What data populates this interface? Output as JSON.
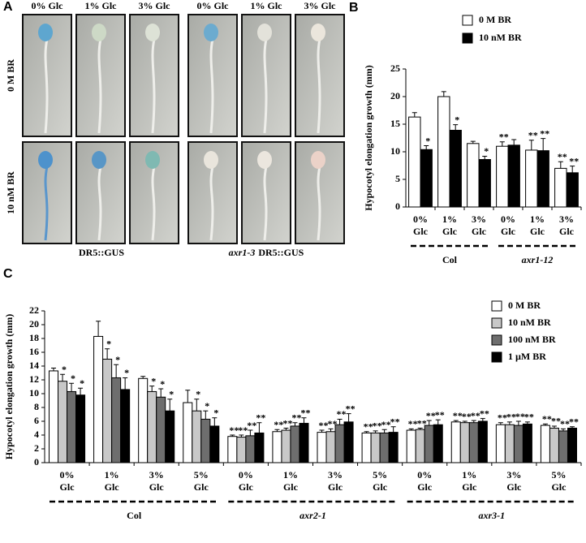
{
  "panel_a": {
    "label": "A",
    "columns": [
      "0% Glc",
      "1% Glc",
      "3% Glc",
      "0% Glc",
      "1% Glc",
      "3% Glc"
    ],
    "rows": [
      "0 M BR",
      "10 nM BR"
    ],
    "captions": [
      [
        "DR5::GUS"
      ],
      [
        "axr1-3",
        "DR5::GUS"
      ]
    ]
  },
  "chart_data": [
    {
      "type": "bar",
      "label": "B",
      "y_label": "Hypocotyl elongation growth (mm)",
      "categories": [
        "0% Glc",
        "1% Glc",
        "3% Glc",
        "0% Glc",
        "1% Glc",
        "3% Glc"
      ],
      "groups": [
        "Col",
        "axr1-12"
      ],
      "ylim": [
        0,
        25
      ],
      "yticks": [
        0,
        5,
        10,
        15,
        20,
        25
      ],
      "series": [
        {
          "name": "0 M BR",
          "color": "#ffffff",
          "values": [
            16.3,
            20.0,
            11.5,
            11.0,
            10.3,
            7.0
          ],
          "errors": [
            0.8,
            0.9,
            0.4,
            0.8,
            1.8,
            1.2
          ],
          "annotations": [
            null,
            null,
            null,
            "**",
            "**",
            "**"
          ]
        },
        {
          "name": "10 nM BR",
          "color": "#000000",
          "values": [
            10.4,
            13.9,
            8.6,
            11.2,
            10.2,
            6.2
          ],
          "errors": [
            0.7,
            1.0,
            0.6,
            1.0,
            2.2,
            1.2
          ],
          "annotations": [
            "*",
            "*",
            "*",
            null,
            "**",
            "**"
          ]
        }
      ]
    },
    {
      "type": "bar",
      "label": "C",
      "y_label": "Hypocotyl elongation growth (mm)",
      "categories": [
        "0% Glc",
        "1% Glc",
        "3% Glc",
        "5% Glc",
        "0% Glc",
        "1% Glc",
        "3% Glc",
        "5% Glc",
        "0% Glc",
        "1% Glc",
        "3% Glc",
        "5% Glc"
      ],
      "groups": [
        "Col",
        "axr2-1",
        "axr3-1"
      ],
      "ylim": [
        0,
        22
      ],
      "yticks": [
        0,
        2,
        4,
        6,
        8,
        10,
        12,
        14,
        16,
        18,
        20,
        22
      ],
      "series": [
        {
          "name": "0 M BR",
          "color": "#ffffff",
          "values": [
            13.3,
            18.3,
            12.2,
            8.7,
            3.8,
            4.5,
            4.4,
            4.3,
            4.7,
            5.9,
            5.5,
            5.4
          ],
          "errors": [
            0.4,
            2.2,
            0.3,
            1.8,
            0.2,
            0.3,
            0.3,
            0.2,
            0.2,
            0.2,
            0.3,
            0.2
          ],
          "annotations": [
            null,
            null,
            null,
            null,
            "**",
            "**",
            "**",
            "**",
            "**",
            "**",
            "**",
            "**"
          ]
        },
        {
          "name": "10 nM BR",
          "color": "#c8c8c8",
          "values": [
            11.8,
            15.0,
            10.3,
            7.5,
            3.7,
            4.7,
            4.5,
            4.3,
            4.8,
            5.8,
            5.5,
            5.0
          ],
          "errors": [
            1.0,
            1.5,
            0.8,
            1.7,
            0.3,
            0.3,
            0.4,
            0.3,
            0.2,
            0.2,
            0.4,
            0.3
          ],
          "annotations": [
            "*",
            "*",
            "*",
            "*",
            "**",
            "**",
            "**",
            "**",
            "**",
            "**",
            "**",
            "**"
          ]
        },
        {
          "name": "100 nM BR",
          "color": "#6e6e6e",
          "values": [
            10.3,
            12.3,
            9.5,
            6.3,
            3.9,
            5.3,
            5.5,
            4.3,
            5.4,
            5.8,
            5.4,
            4.6
          ],
          "errors": [
            1.2,
            1.9,
            1.2,
            1.2,
            0.8,
            0.5,
            0.8,
            0.5,
            0.7,
            0.3,
            0.6,
            0.3
          ],
          "annotations": [
            "*",
            "*",
            "*",
            "*",
            "**",
            "**",
            "**",
            "**",
            "**",
            "**",
            "**",
            "**"
          ]
        },
        {
          "name": "1 µM BR",
          "color": "#000000",
          "values": [
            9.8,
            10.6,
            7.5,
            5.3,
            4.3,
            5.7,
            5.9,
            4.4,
            5.5,
            6.0,
            5.6,
            5.0
          ],
          "errors": [
            1.0,
            1.7,
            1.7,
            1.2,
            1.5,
            0.8,
            1.2,
            0.8,
            0.7,
            0.4,
            0.3,
            0.2
          ],
          "annotations": [
            "*",
            "*",
            "*",
            "*",
            "**",
            "**",
            "**",
            "**",
            "**",
            "**",
            "**",
            "**"
          ]
        }
      ]
    }
  ]
}
